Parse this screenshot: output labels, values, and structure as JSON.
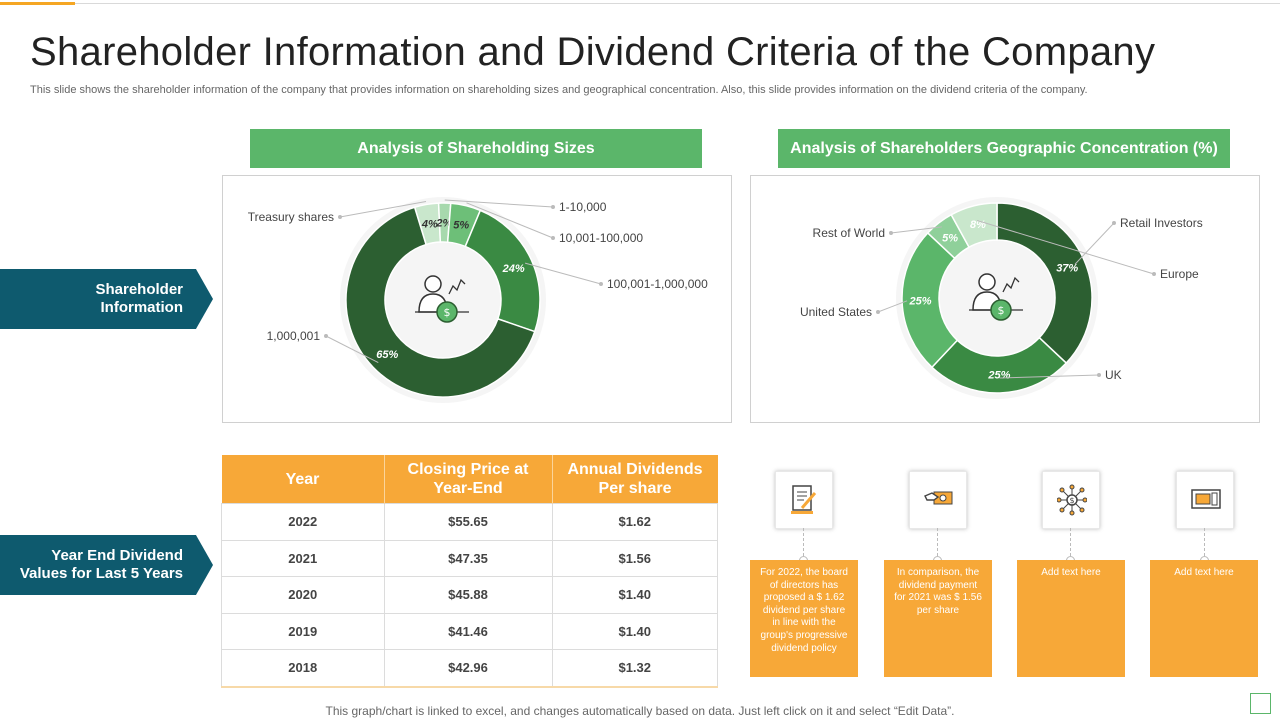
{
  "title": "Shareholder Information and Dividend Criteria of the Company",
  "subtitle": "This slide shows the shareholder information of the company that provides information on shareholding sizes and geographical concentration. Also, this slide provides information on the dividend criteria of the company.",
  "sections": {
    "shareholder_info": "Shareholder Information",
    "dividend_values": "Year End Dividend Values for Last 5 Years"
  },
  "colors": {
    "accent": "#f7a838",
    "green": "#5bb66a",
    "dark_green": "#2c5f31",
    "teal": "#0e5a6e"
  },
  "chart_data": [
    {
      "type": "pie",
      "title": "Analysis of Shareholding Sizes",
      "slices": [
        {
          "label": "Treasury shares",
          "value": 4,
          "text": "4%",
          "color": "#c9e7cc"
        },
        {
          "label": "1-10,000",
          "value": 2,
          "text": "2%",
          "color": "#a7d9ad"
        },
        {
          "label": "10,001-100,000",
          "value": 5,
          "text": "5%",
          "color": "#6dbf78"
        },
        {
          "label": "100,001-1,000,000",
          "value": 24,
          "text": "24%",
          "color": "#3a8a43"
        },
        {
          "label": "1,000,001",
          "value": 65,
          "text": "65%",
          "color": "#2c5f31"
        }
      ]
    },
    {
      "type": "pie",
      "title": "Analysis of Shareholders Geographic Concentration (%)",
      "slices": [
        {
          "label": "Retail Investors",
          "value": 37,
          "text": "37%",
          "color": "#2c5f31"
        },
        {
          "label": "UK",
          "value": 25,
          "text": "25%",
          "color": "#3a8a43"
        },
        {
          "label": "United States",
          "value": 25,
          "text": "25%",
          "color": "#5bb66a"
        },
        {
          "label": "Rest of World",
          "value": 5,
          "text": "5%",
          "color": "#8fd09a"
        },
        {
          "label": "Europe",
          "value": 8,
          "text": "8%",
          "color": "#c9e7cc"
        }
      ]
    }
  ],
  "table": {
    "headers": [
      "Year",
      "Closing Price at Year-End",
      "Annual Dividends Per share"
    ],
    "rows": [
      [
        "2022",
        "$55.65",
        "$1.62"
      ],
      [
        "2021",
        "$47.35",
        "$1.56"
      ],
      [
        "2020",
        "$45.88",
        "$1.40"
      ],
      [
        "2019",
        "$41.46",
        "$1.40"
      ],
      [
        "2018",
        "$42.96",
        "$1.32"
      ]
    ]
  },
  "cards": [
    {
      "icon": "document-pen-icon",
      "text": "For 2022, the board of directors has proposed a $ 1.62 dividend per share in line with the group's progressive dividend policy"
    },
    {
      "icon": "hand-money-icon",
      "text": "In comparison, the dividend payment for 2021 was $ 1.56 per share"
    },
    {
      "icon": "dollar-network-icon",
      "text": "Add text here"
    },
    {
      "icon": "atm-card-icon",
      "text": "Add text here"
    }
  ],
  "footer": "This graph/chart is linked to excel,  and changes automatically based on data. Just left click on it and select “Edit Data”."
}
